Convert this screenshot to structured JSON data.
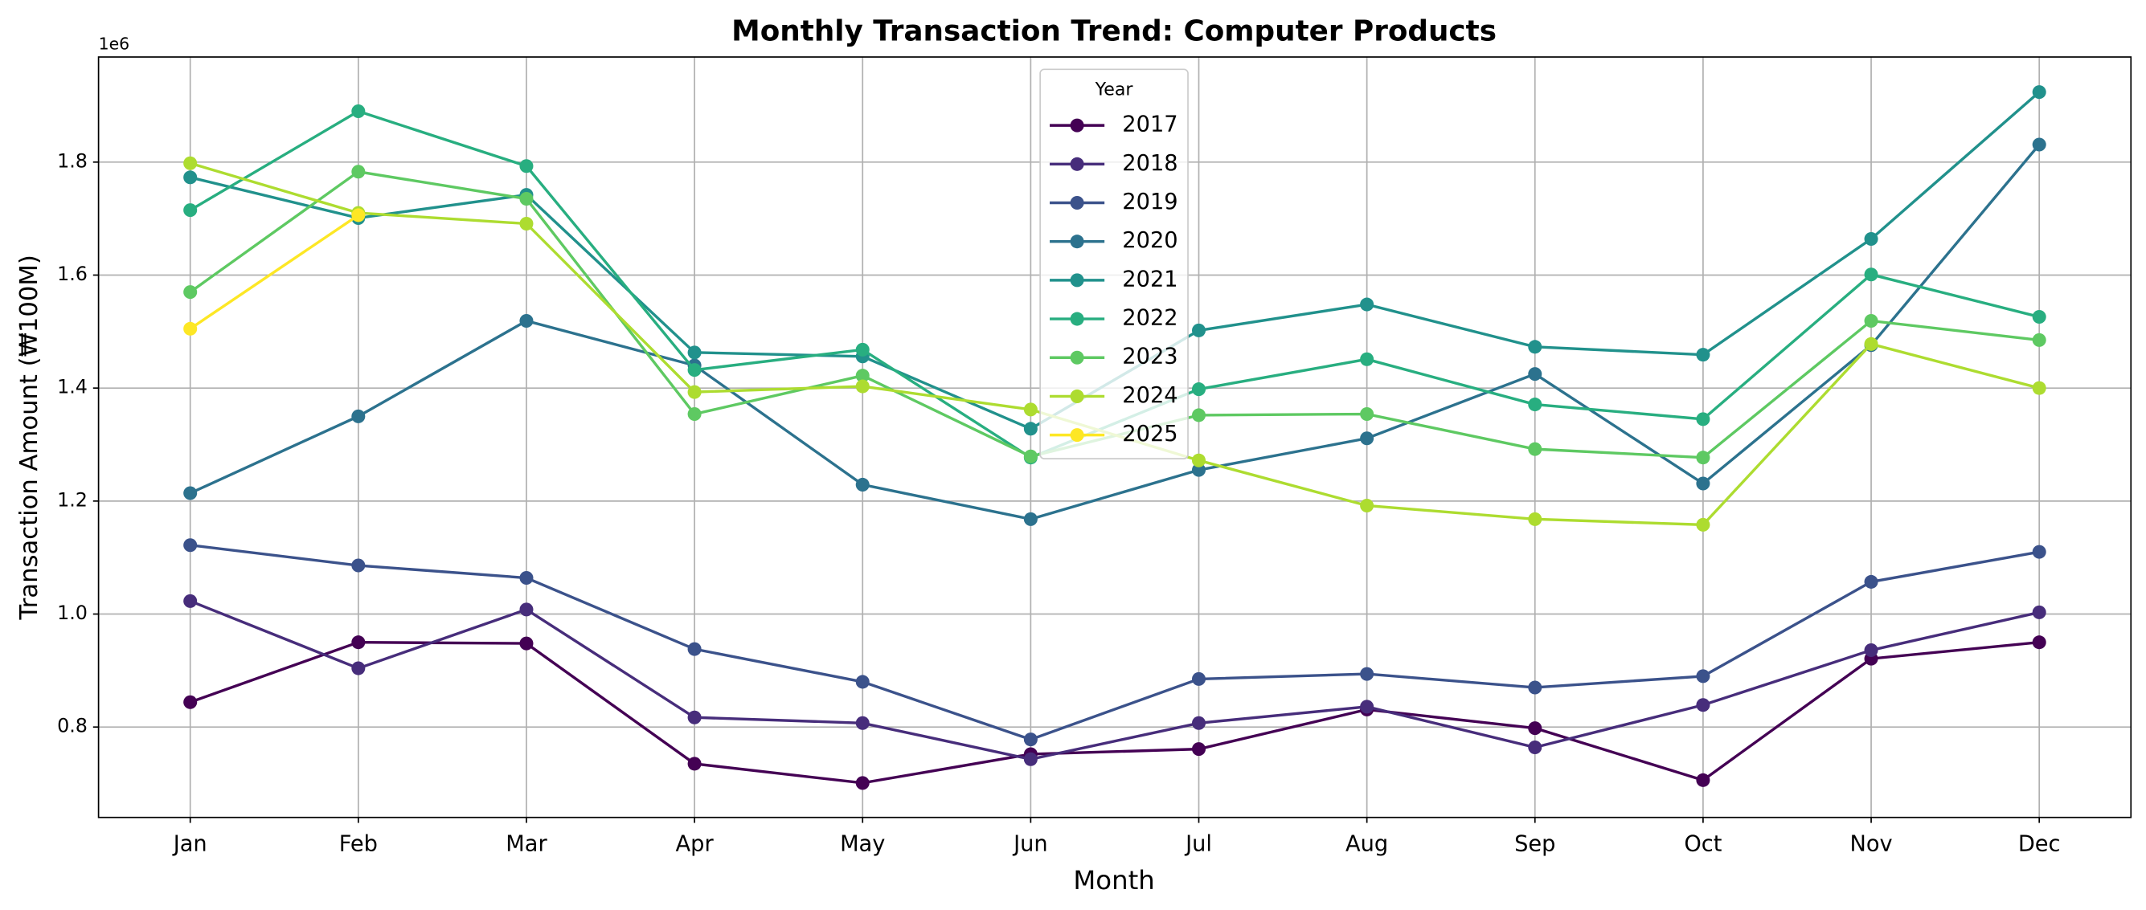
{
  "chart_data": {
    "type": "line",
    "title": "Monthly Transaction Trend: Computer Products",
    "x_label": "Month",
    "y_label": "Transaction Amount (₩100M)",
    "y_offset_label": "1e6",
    "legend_title": "Year",
    "legend_position": "upper center",
    "grid": true,
    "categories": [
      "Jan",
      "Feb",
      "Mar",
      "Apr",
      "May",
      "Jun",
      "Jul",
      "Aug",
      "Sep",
      "Oct",
      "Nov",
      "Dec"
    ],
    "ylim": [
      0.64,
      1.986
    ],
    "yticks": [
      {
        "value": 0.8,
        "label": "0.8"
      },
      {
        "value": 1.0,
        "label": "1.0"
      },
      {
        "value": 1.2,
        "label": "1.2"
      },
      {
        "value": 1.4,
        "label": "1.4"
      },
      {
        "value": 1.6,
        "label": "1.6"
      },
      {
        "value": 1.8,
        "label": "1.8"
      }
    ],
    "series": [
      {
        "name": "2017",
        "color": "#440154",
        "values": [
          0.844,
          0.95,
          0.948,
          0.735,
          0.701,
          0.752,
          0.761,
          0.831,
          0.798,
          0.706,
          0.921,
          0.95
        ]
      },
      {
        "name": "2018",
        "color": "#472d7b",
        "values": [
          1.023,
          0.904,
          1.008,
          0.817,
          0.807,
          0.743,
          0.807,
          0.836,
          0.764,
          0.839,
          0.936,
          1.003
        ]
      },
      {
        "name": "2019",
        "color": "#3b528b",
        "values": [
          1.122,
          1.086,
          1.064,
          0.938,
          0.88,
          0.778,
          0.885,
          0.894,
          0.87,
          0.89,
          1.057,
          1.11
        ]
      },
      {
        "name": "2020",
        "color": "#2c728e",
        "values": [
          1.214,
          1.35,
          1.519,
          1.44,
          1.229,
          1.168,
          1.255,
          1.311,
          1.425,
          1.231,
          1.476,
          1.831
        ]
      },
      {
        "name": "2021",
        "color": "#21918c",
        "values": [
          1.773,
          1.701,
          1.742,
          1.463,
          1.456,
          1.328,
          1.502,
          1.548,
          1.473,
          1.459,
          1.664,
          1.924
        ]
      },
      {
        "name": "2022",
        "color": "#28ae80",
        "values": [
          1.715,
          1.89,
          1.793,
          1.432,
          1.468,
          1.277,
          1.398,
          1.451,
          1.371,
          1.345,
          1.601,
          1.526
        ]
      },
      {
        "name": "2023",
        "color": "#5ec962",
        "values": [
          1.57,
          1.783,
          1.735,
          1.354,
          1.422,
          1.279,
          1.352,
          1.354,
          1.292,
          1.277,
          1.519,
          1.485
        ]
      },
      {
        "name": "2024",
        "color": "#addc30",
        "values": [
          1.798,
          1.71,
          1.691,
          1.393,
          1.403,
          1.362,
          1.272,
          1.192,
          1.168,
          1.158,
          1.478,
          1.4
        ]
      },
      {
        "name": "2025",
        "color": "#fde725",
        "values": [
          1.505,
          1.706,
          null,
          null,
          null,
          null,
          null,
          null,
          null,
          null,
          null,
          null
        ]
      }
    ]
  }
}
